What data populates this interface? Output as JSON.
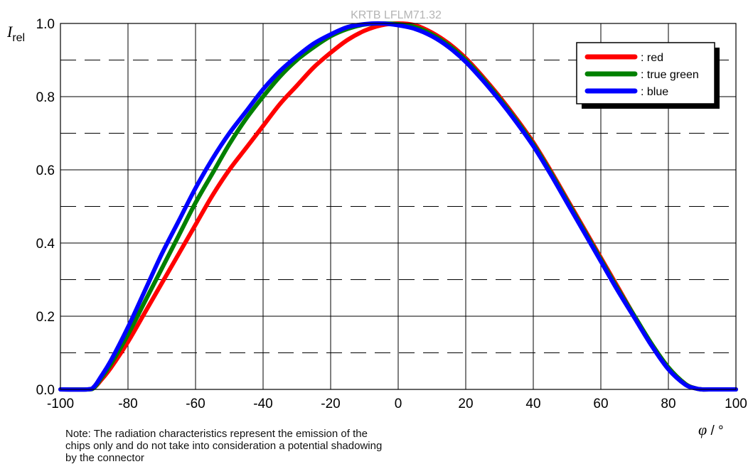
{
  "chart_data": {
    "type": "line",
    "title": "KRTB LFLM71.32",
    "xlabel": {
      "symbol": "φ",
      "unit": " / °"
    },
    "ylabel": {
      "symbol": "I",
      "subscript": "rel"
    },
    "xlim": [
      -100,
      100
    ],
    "ylim": [
      0,
      1.0
    ],
    "xticks": [
      "-100",
      "-80",
      "-60",
      "-40",
      "-20",
      "0",
      "20",
      "40",
      "60",
      "80",
      "100"
    ],
    "yticks": [
      "0.0",
      "0.2",
      "0.4",
      "0.6",
      "0.8",
      "1.0"
    ],
    "grid": {
      "major": "solid",
      "minor_y": "dashed"
    },
    "legend_position": "top-right",
    "series": [
      {
        "name": ": red",
        "color": "#ff0000",
        "x": [
          -100,
          -92,
          -90,
          -88,
          -85,
          -80,
          -75,
          -70,
          -65,
          -60,
          -55,
          -50,
          -45,
          -40,
          -35,
          -30,
          -25,
          -20,
          -15,
          -10,
          -5,
          0,
          5,
          10,
          15,
          20,
          25,
          30,
          35,
          40,
          45,
          50,
          55,
          60,
          65,
          70,
          75,
          80,
          85,
          88,
          90,
          92,
          100
        ],
        "y": [
          0.0,
          0.0,
          0.005,
          0.025,
          0.06,
          0.13,
          0.21,
          0.29,
          0.37,
          0.45,
          0.53,
          0.6,
          0.66,
          0.72,
          0.78,
          0.83,
          0.88,
          0.92,
          0.955,
          0.98,
          0.995,
          1.0,
          0.995,
          0.975,
          0.945,
          0.905,
          0.855,
          0.8,
          0.74,
          0.675,
          0.6,
          0.52,
          0.44,
          0.36,
          0.28,
          0.2,
          0.125,
          0.06,
          0.015,
          0.003,
          0.0,
          0.0,
          0.0
        ]
      },
      {
        "name": ": true green",
        "color": "#008000",
        "x": [
          -100,
          -92,
          -90,
          -88,
          -85,
          -80,
          -75,
          -70,
          -65,
          -60,
          -55,
          -50,
          -45,
          -40,
          -35,
          -30,
          -25,
          -20,
          -15,
          -10,
          -5,
          0,
          5,
          10,
          15,
          20,
          25,
          30,
          35,
          40,
          45,
          50,
          55,
          60,
          65,
          70,
          75,
          80,
          85,
          88,
          90,
          92,
          100
        ],
        "y": [
          0.0,
          0.0,
          0.005,
          0.03,
          0.07,
          0.15,
          0.24,
          0.33,
          0.42,
          0.51,
          0.59,
          0.67,
          0.74,
          0.8,
          0.855,
          0.9,
          0.935,
          0.965,
          0.985,
          0.997,
          1.0,
          0.998,
          0.99,
          0.97,
          0.94,
          0.9,
          0.85,
          0.795,
          0.735,
          0.67,
          0.595,
          0.515,
          0.435,
          0.355,
          0.275,
          0.2,
          0.125,
          0.06,
          0.015,
          0.003,
          0.0,
          0.0,
          0.0
        ]
      },
      {
        "name": ": blue",
        "color": "#0000ff",
        "x": [
          -100,
          -92,
          -90,
          -88,
          -85,
          -80,
          -75,
          -70,
          -65,
          -60,
          -55,
          -50,
          -45,
          -40,
          -35,
          -30,
          -25,
          -20,
          -15,
          -10,
          -5,
          0,
          5,
          10,
          15,
          20,
          25,
          30,
          35,
          40,
          45,
          50,
          55,
          60,
          65,
          70,
          75,
          80,
          85,
          88,
          90,
          92,
          100
        ],
        "y": [
          0.0,
          0.0,
          0.008,
          0.035,
          0.08,
          0.17,
          0.27,
          0.37,
          0.46,
          0.55,
          0.63,
          0.7,
          0.76,
          0.82,
          0.87,
          0.91,
          0.945,
          0.97,
          0.99,
          0.998,
          1.0,
          0.995,
          0.985,
          0.965,
          0.935,
          0.895,
          0.845,
          0.79,
          0.73,
          0.665,
          0.59,
          0.51,
          0.43,
          0.35,
          0.27,
          0.195,
          0.12,
          0.055,
          0.013,
          0.003,
          0.0,
          0.0,
          0.0
        ]
      }
    ]
  },
  "note": {
    "lines": [
      "Note: The radiation characteristics represent the emission of the",
      "chips only and do not take into consideration a potential shadowing",
      "by the connector"
    ]
  }
}
